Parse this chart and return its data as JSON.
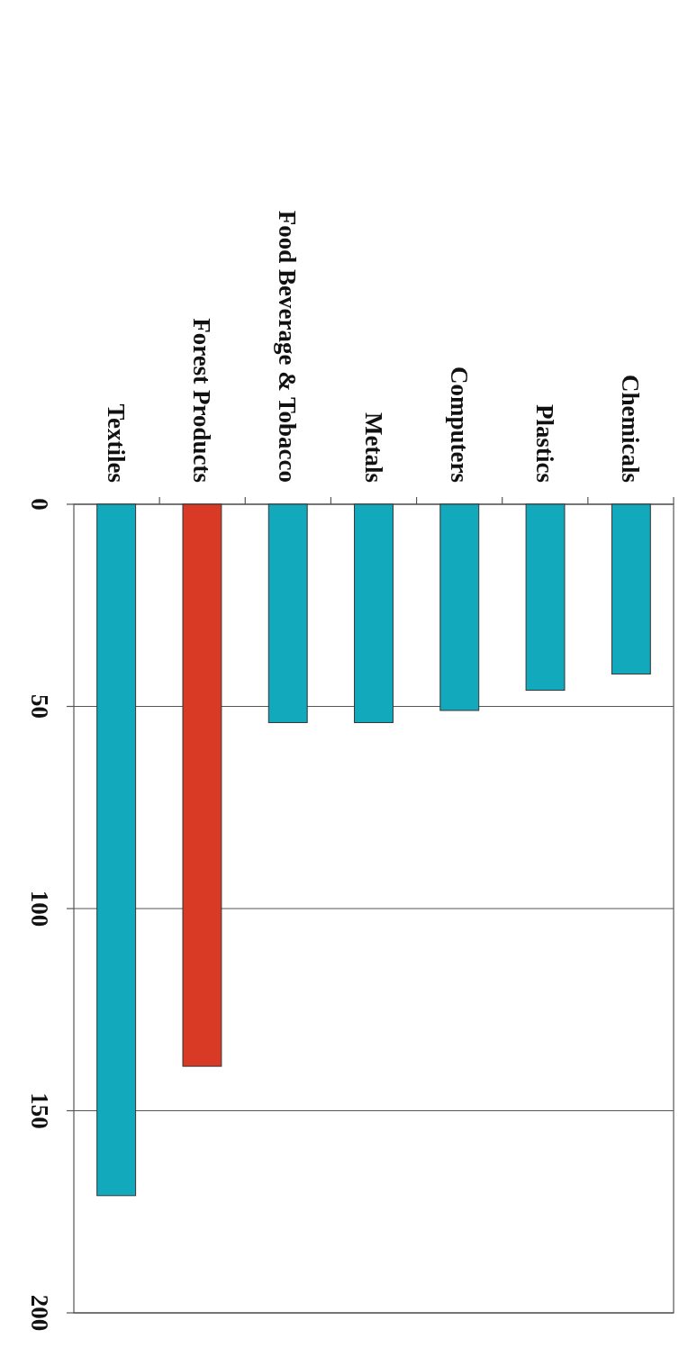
{
  "chart_data": {
    "type": "bar",
    "categories": [
      "Textiles",
      "Forest Products",
      "Food Beverage & Tobacco",
      "Metals",
      "Computers",
      "Plastics",
      "Chemicals"
    ],
    "values": [
      171,
      139,
      54,
      54,
      51,
      46,
      42
    ],
    "colors": [
      "#12a9bc",
      "#d83a25",
      "#12a9bc",
      "#12a9bc",
      "#12a9bc",
      "#12a9bc",
      "#12a9bc"
    ],
    "ylim": [
      200,
      0
    ],
    "yticks": [
      0,
      50,
      100,
      150,
      200
    ],
    "grid": "y"
  }
}
